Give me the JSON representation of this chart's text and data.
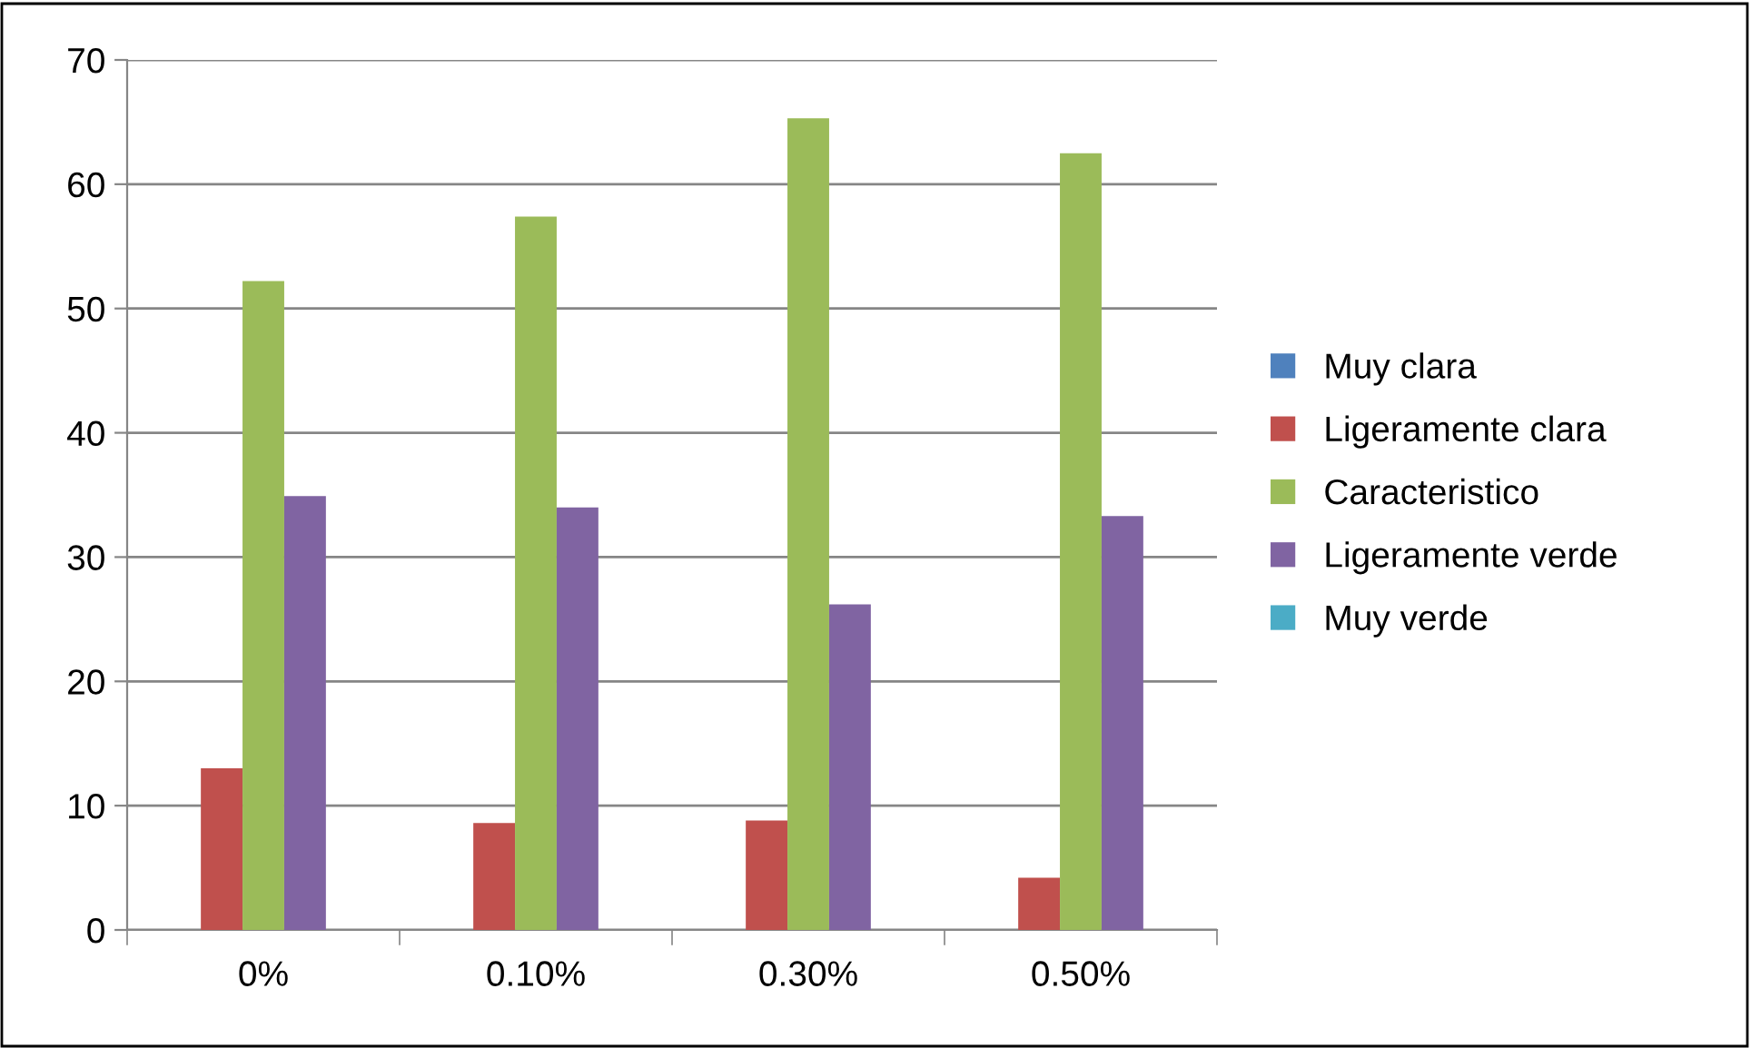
{
  "chart_data": {
    "type": "bar",
    "categories": [
      "0%",
      "0.10%",
      "0.30%",
      "0.50%"
    ],
    "series": [
      {
        "name": "Muy clara",
        "color": "#4f81bd",
        "values": [
          0,
          0,
          0,
          0
        ]
      },
      {
        "name": "Ligeramente clara",
        "color": "#c0504d",
        "values": [
          13.0,
          8.6,
          8.8,
          4.2
        ]
      },
      {
        "name": "Caracteristico",
        "color": "#9bbb59",
        "values": [
          52.2,
          57.4,
          65.3,
          62.5
        ]
      },
      {
        "name": "Ligeramente verde",
        "color": "#8064a2",
        "values": [
          34.9,
          34.0,
          26.2,
          33.3
        ]
      },
      {
        "name": "Muy verde",
        "color": "#4bacc6",
        "values": [
          0,
          0,
          0,
          0
        ]
      }
    ],
    "ylim": [
      0,
      70
    ],
    "yticks": [
      0,
      10,
      20,
      30,
      40,
      50,
      60,
      70
    ],
    "grid": "y",
    "legend": "right"
  }
}
